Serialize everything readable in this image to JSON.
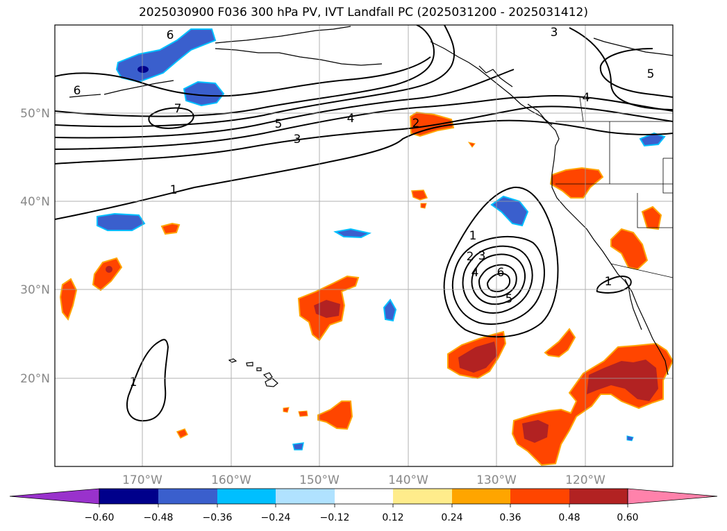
{
  "title": "2025030900 F036 300 hPa PV, IVT Landfall PC (2025031200 - 2025031412)",
  "map": {
    "lon_ticks": [
      "170°W",
      "160°W",
      "150°W",
      "140°W",
      "130°W",
      "120°W"
    ],
    "lat_ticks": [
      "50°N",
      "40°N",
      "30°N",
      "20°N"
    ],
    "contour_labels": [
      "6",
      "3",
      "5",
      "6",
      "4",
      "7",
      "5",
      "4",
      "3",
      "2",
      "1",
      "1",
      "2",
      "3",
      "4",
      "6",
      "5",
      "1",
      "1"
    ]
  },
  "colorbar": {
    "colors": [
      "#9932CC",
      "#00008B",
      "#3A5FCD",
      "#00BFFF",
      "#B0E2FF",
      "#FFFFFF",
      "#FFEC8B",
      "#FFA500",
      "#FF4500",
      "#B22222",
      "#FF82AB"
    ],
    "tick_labels": [
      "−0.60",
      "−0.48",
      "−0.36",
      "−0.24",
      "−0.12",
      "0.12",
      "0.24",
      "0.36",
      "0.48",
      "0.60"
    ]
  }
}
